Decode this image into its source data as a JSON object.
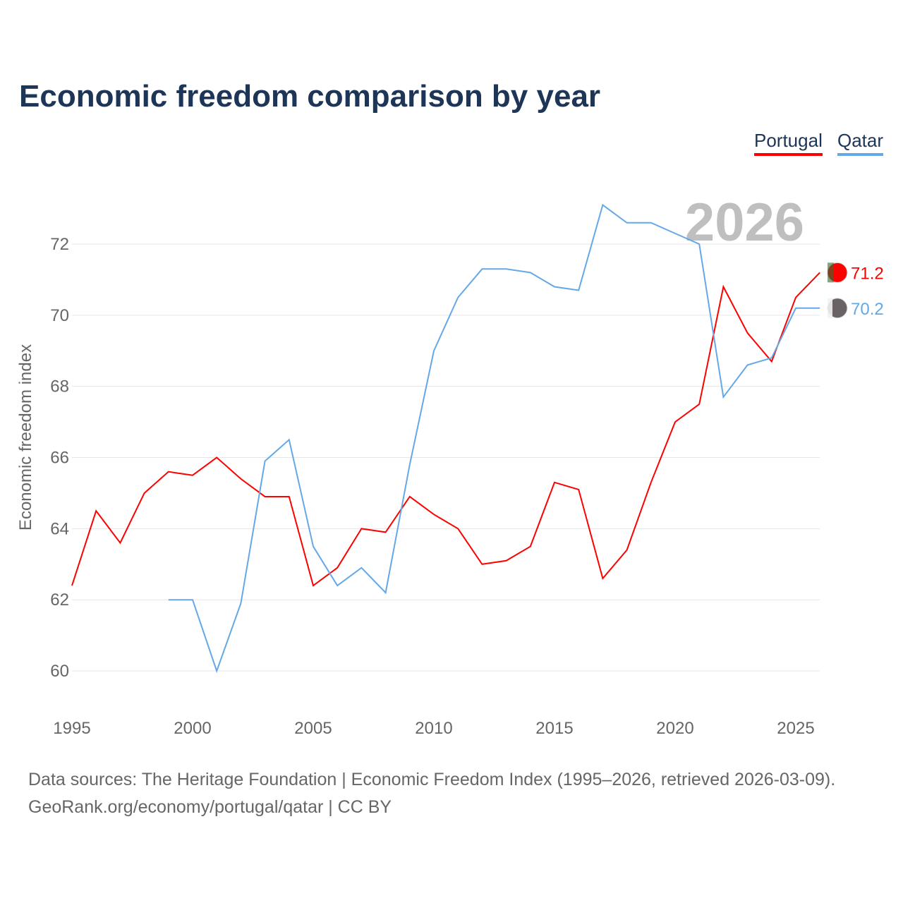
{
  "chart_data": {
    "type": "line",
    "title": "Economic freedom comparison by year",
    "xlabel": "",
    "ylabel": "Economic freedom index",
    "xlim": [
      1995,
      2026
    ],
    "ylim": [
      59,
      73.5
    ],
    "xticks": [
      1995,
      2000,
      2005,
      2010,
      2015,
      2020,
      2025
    ],
    "yticks": [
      60,
      62,
      64,
      66,
      68,
      70,
      72
    ],
    "grid": true,
    "legend_position": "top-right",
    "year_label": "2026",
    "series": [
      {
        "name": "Portugal",
        "color": "#ff0000",
        "end_label": "71.2",
        "x": [
          1995,
          1996,
          1997,
          1998,
          1999,
          2000,
          2001,
          2002,
          2003,
          2004,
          2005,
          2006,
          2007,
          2008,
          2009,
          2010,
          2011,
          2012,
          2013,
          2014,
          2015,
          2016,
          2017,
          2018,
          2019,
          2020,
          2021,
          2022,
          2023,
          2024,
          2025,
          2026
        ],
        "y": [
          62.4,
          64.5,
          63.6,
          65.0,
          65.6,
          65.5,
          66.0,
          65.4,
          64.9,
          64.9,
          62.4,
          62.9,
          64.0,
          63.9,
          64.9,
          64.4,
          64.0,
          63.0,
          63.1,
          63.5,
          65.3,
          65.1,
          62.6,
          63.4,
          65.3,
          67.0,
          67.5,
          70.8,
          69.5,
          68.7,
          70.5,
          71.2
        ]
      },
      {
        "name": "Qatar",
        "color": "#64a8e8",
        "end_label": "70.2",
        "x": [
          1999,
          2000,
          2001,
          2002,
          2003,
          2004,
          2005,
          2006,
          2007,
          2008,
          2009,
          2010,
          2011,
          2012,
          2013,
          2014,
          2015,
          2016,
          2017,
          2018,
          2019,
          2020,
          2021,
          2022,
          2023,
          2024,
          2025,
          2026
        ],
        "y": [
          62.0,
          62.0,
          60.0,
          61.9,
          65.9,
          66.5,
          63.5,
          62.4,
          62.9,
          62.2,
          65.8,
          69.0,
          70.5,
          71.3,
          71.3,
          71.2,
          70.8,
          70.7,
          73.1,
          72.6,
          72.6,
          72.3,
          72.0,
          67.7,
          68.6,
          68.8,
          70.2,
          70.2
        ]
      }
    ],
    "source_line1": "Data sources: The Heritage Foundation | Economic Freedom Index (1995–2026, retrieved 2026-03-09).",
    "source_line2": "GeoRank.org/economy/portugal/qatar | CC BY"
  }
}
